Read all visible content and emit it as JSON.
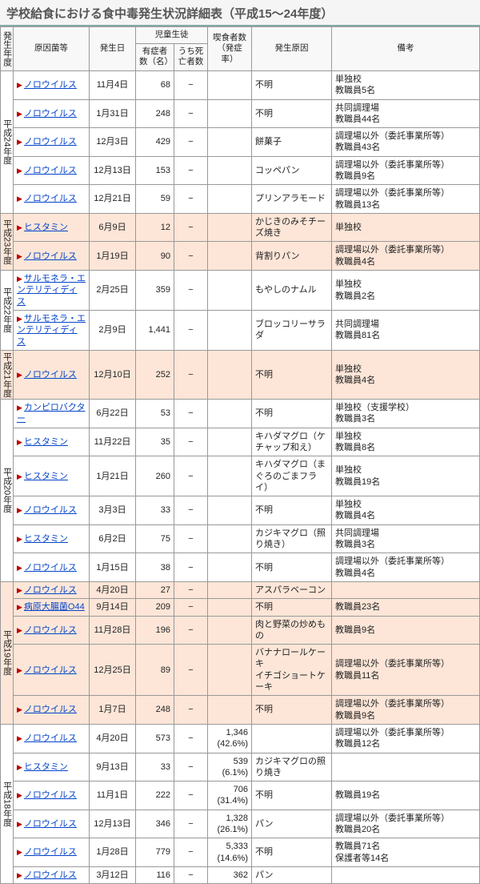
{
  "title": "学校給食における食中毒発生状況詳細表（平成15～24年度）",
  "headers": {
    "year": "発生年度",
    "cause": "原因菌等",
    "date": "発生日",
    "students": "児童生徒",
    "patients": "有症者数（名）",
    "deaths": "うち死亡者数",
    "eaters": "喫食者数（発症率）",
    "origin": "発生原因",
    "note": "備考"
  },
  "groups": [
    {
      "year": "平成24年度",
      "alt": false,
      "rows": [
        {
          "cause": "ノロウイルス",
          "date": "11月4日",
          "pat": "68",
          "death": "−",
          "eat": "",
          "origin": "不明",
          "note": "単独校\n教職員5名"
        },
        {
          "cause": "ノロウイルス",
          "date": "1月31日",
          "pat": "248",
          "death": "−",
          "eat": "",
          "origin": "不明",
          "note": "共同調理場\n教職員44名"
        },
        {
          "cause": "ノロウイルス",
          "date": "12月3日",
          "pat": "429",
          "death": "−",
          "eat": "",
          "origin": "餅菓子",
          "note": "調理場以外（委託事業所等）\n教職員43名"
        },
        {
          "cause": "ノロウイルス",
          "date": "12月13日",
          "pat": "153",
          "death": "−",
          "eat": "",
          "origin": "コッペパン",
          "note": "調理場以外（委託事業所等）\n教職員9名"
        },
        {
          "cause": "ノロウイルス",
          "date": "12月21日",
          "pat": "59",
          "death": "−",
          "eat": "",
          "origin": "プリンアラモード",
          "note": "調理場以外（委託事業所等）\n教職員13名"
        }
      ]
    },
    {
      "year": "平成23年度",
      "alt": true,
      "rows": [
        {
          "cause": "ヒスタミン",
          "date": "6月9日",
          "pat": "12",
          "death": "−",
          "eat": "",
          "origin": "かじきのみそチーズ焼き",
          "note": "単独校"
        },
        {
          "cause": "ノロウイルス",
          "date": "1月19日",
          "pat": "90",
          "death": "−",
          "eat": "",
          "origin": "背割りパン",
          "note": "調理場以外（委託事業所等）\n教職員4名"
        }
      ]
    },
    {
      "year": "平成22年度",
      "alt": false,
      "rows": [
        {
          "cause": "サルモネラ・エンテリティディス",
          "date": "2月25日",
          "pat": "359",
          "death": "−",
          "eat": "",
          "origin": "もやしのナムル",
          "note": "単独校\n教職員2名"
        },
        {
          "cause": "サルモネラ・エンテリティディス",
          "date": "2月9日",
          "pat": "1,441",
          "death": "−",
          "eat": "",
          "origin": "ブロッコリーサラダ",
          "note": "共同調理場\n教職員81名"
        }
      ]
    },
    {
      "year": "平成21年度",
      "alt": true,
      "rows": [
        {
          "cause": "ノロウイルス",
          "date": "12月10日",
          "pat": "252",
          "death": "−",
          "eat": "",
          "origin": "不明",
          "note": "単独校\n教職員4名"
        }
      ]
    },
    {
      "year": "平成20年度",
      "alt": false,
      "rows": [
        {
          "cause": "カンピロバクター",
          "date": "6月22日",
          "pat": "53",
          "death": "−",
          "eat": "",
          "origin": "不明",
          "note": "単独校（支援学校）\n教職員3名"
        },
        {
          "cause": "ヒスタミン",
          "date": "11月22日",
          "pat": "35",
          "death": "−",
          "eat": "",
          "origin": "キハダマグロ（ケチャップ和え）",
          "note": "単独校\n教職員8名"
        },
        {
          "cause": "ヒスタミン",
          "date": "1月21日",
          "pat": "260",
          "death": "−",
          "eat": "",
          "origin": "キハダマグロ（まぐろのごまフライ）",
          "note": "単独校\n教職員19名"
        },
        {
          "cause": "ノロウイルス",
          "date": "3月3日",
          "pat": "33",
          "death": "−",
          "eat": "",
          "origin": "不明",
          "note": "単独校\n教職員4名"
        },
        {
          "cause": "ヒスタミン",
          "date": "6月2日",
          "pat": "75",
          "death": "−",
          "eat": "",
          "origin": "カジキマグロ（照り焼き）",
          "note": "共同調理場\n教職員3名"
        },
        {
          "cause": "ノロウイルス",
          "date": "1月15日",
          "pat": "38",
          "death": "−",
          "eat": "",
          "origin": "不明",
          "note": "調理場以外（委託事業所等）\n教職員4名"
        }
      ]
    },
    {
      "year": "平成19年度",
      "alt": true,
      "rows": [
        {
          "cause": "ノロウイルス",
          "date": "4月20日",
          "pat": "27",
          "death": "−",
          "eat": "",
          "origin": "アスパラベーコン",
          "note": ""
        },
        {
          "cause": "病原大腸菌O44",
          "date": "9月14日",
          "pat": "209",
          "death": "−",
          "eat": "",
          "origin": "不明",
          "note": "教職員23名"
        },
        {
          "cause": "ノロウイルス",
          "date": "11月28日",
          "pat": "196",
          "death": "−",
          "eat": "",
          "origin": "肉と野菜の炒めもの",
          "note": "教職員9名"
        },
        {
          "cause": "ノロウイルス",
          "date": "12月25日",
          "pat": "89",
          "death": "−",
          "eat": "",
          "origin": "バナナロールケーキ\nイチゴショートケーキ",
          "note": "調理場以外（委託事業所等）\n教職員11名"
        },
        {
          "cause": "ノロウイルス",
          "date": "1月7日",
          "pat": "248",
          "death": "−",
          "eat": "",
          "origin": "不明",
          "note": "調理場以外（委託事業所等）\n教職員9名"
        }
      ]
    },
    {
      "year": "平成18年度",
      "alt": false,
      "rows": [
        {
          "cause": "ノロウイルス",
          "date": "4月20日",
          "pat": "573",
          "death": "−",
          "eat": "1,346\n(42.6%)",
          "origin": "",
          "note": "調理場以外（委託事業所等）\n教職員12名"
        },
        {
          "cause": "ヒスタミン",
          "date": "9月13日",
          "pat": "33",
          "death": "−",
          "eat": "539\n(6.1%)",
          "origin": "カジキマグロの照り焼き",
          "note": ""
        },
        {
          "cause": "ノロウイルス",
          "date": "11月1日",
          "pat": "222",
          "death": "−",
          "eat": "706\n(31.4%)",
          "origin": "不明",
          "note": "教職員19名"
        },
        {
          "cause": "ノロウイルス",
          "date": "12月13日",
          "pat": "346",
          "death": "−",
          "eat": "1,328\n(26.1%)",
          "origin": "パン",
          "note": "調理場以外（委託事業所等）\n教職員20名"
        },
        {
          "cause": "ノロウイルス",
          "date": "1月28日",
          "pat": "779",
          "death": "−",
          "eat": "5,333\n(14.6%)",
          "origin": "不明",
          "note": "教職員71名\n保護者等14名"
        },
        {
          "cause": "ノロウイルス",
          "date": "3月12日",
          "pat": "116",
          "death": "−",
          "eat": "362",
          "origin": "パン",
          "note": ""
        }
      ]
    }
  ]
}
